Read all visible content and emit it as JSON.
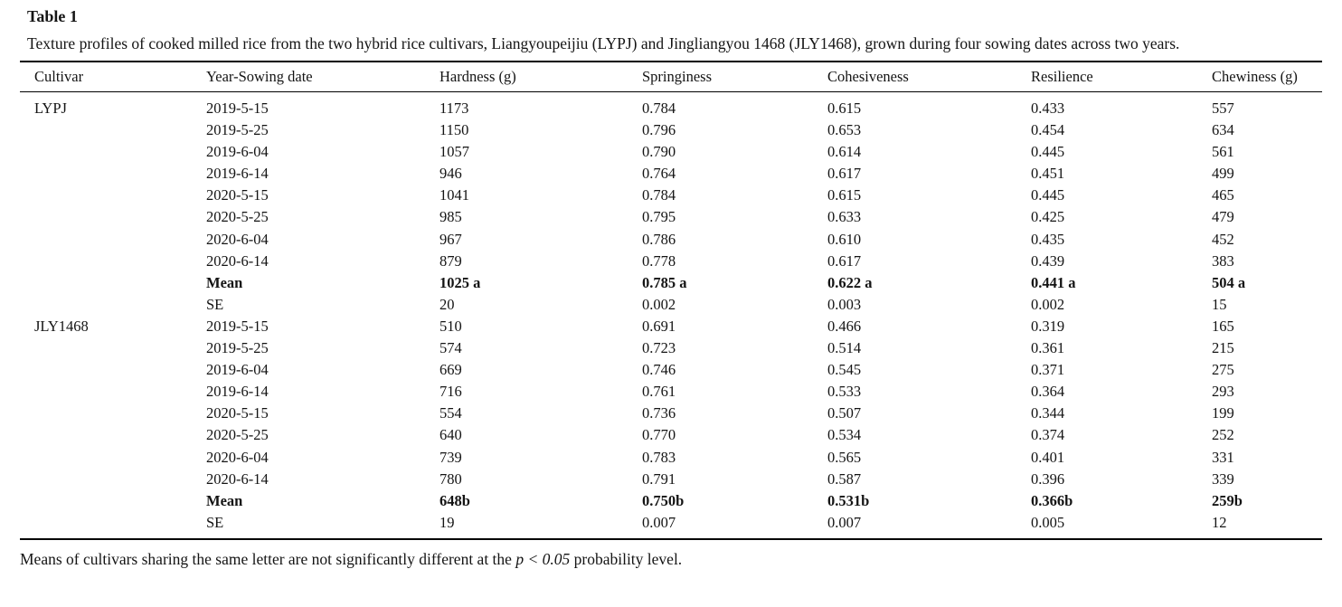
{
  "title": "Table 1",
  "caption": "Texture profiles of cooked milled rice from the two hybrid rice cultivars, Liangyoupeijiu (LYPJ) and Jingliangyou 1468 (JLY1468), grown during four sowing dates across two years.",
  "columns": [
    "Cultivar",
    "Year-Sowing date",
    "Hardness (g)",
    "Springiness",
    "Cohesiveness",
    "Resilience",
    "Chewiness (g)"
  ],
  "row_keys": [
    "cultivar",
    "date",
    "hardness",
    "springiness",
    "cohesiveness",
    "resilience",
    "chewiness"
  ],
  "rows": [
    {
      "cultivar": "LYPJ",
      "date": "2019-5-15",
      "hardness": "1173",
      "springiness": "0.784",
      "cohesiveness": "0.615",
      "resilience": "0.433",
      "chewiness": "557",
      "bold": false
    },
    {
      "cultivar": "",
      "date": "2019-5-25",
      "hardness": "1150",
      "springiness": "0.796",
      "cohesiveness": "0.653",
      "resilience": "0.454",
      "chewiness": "634",
      "bold": false
    },
    {
      "cultivar": "",
      "date": "2019-6-04",
      "hardness": "1057",
      "springiness": "0.790",
      "cohesiveness": "0.614",
      "resilience": "0.445",
      "chewiness": "561",
      "bold": false
    },
    {
      "cultivar": "",
      "date": "2019-6-14",
      "hardness": "946",
      "springiness": "0.764",
      "cohesiveness": "0.617",
      "resilience": "0.451",
      "chewiness": "499",
      "bold": false
    },
    {
      "cultivar": "",
      "date": "2020-5-15",
      "hardness": "1041",
      "springiness": "0.784",
      "cohesiveness": "0.615",
      "resilience": "0.445",
      "chewiness": "465",
      "bold": false
    },
    {
      "cultivar": "",
      "date": "2020-5-25",
      "hardness": "985",
      "springiness": "0.795",
      "cohesiveness": "0.633",
      "resilience": "0.425",
      "chewiness": "479",
      "bold": false
    },
    {
      "cultivar": "",
      "date": "2020-6-04",
      "hardness": "967",
      "springiness": "0.786",
      "cohesiveness": "0.610",
      "resilience": "0.435",
      "chewiness": "452",
      "bold": false
    },
    {
      "cultivar": "",
      "date": "2020-6-14",
      "hardness": "879",
      "springiness": "0.778",
      "cohesiveness": "0.617",
      "resilience": "0.439",
      "chewiness": "383",
      "bold": false
    },
    {
      "cultivar": "",
      "date": "Mean",
      "hardness": "1025 a",
      "springiness": "0.785 a",
      "cohesiveness": "0.622 a",
      "resilience": "0.441 a",
      "chewiness": "504 a",
      "bold": true
    },
    {
      "cultivar": "",
      "date": "SE",
      "hardness": "20",
      "springiness": "0.002",
      "cohesiveness": "0.003",
      "resilience": "0.002",
      "chewiness": "15",
      "bold": false
    },
    {
      "cultivar": "JLY1468",
      "date": "2019-5-15",
      "hardness": "510",
      "springiness": "0.691",
      "cohesiveness": "0.466",
      "resilience": "0.319",
      "chewiness": "165",
      "bold": false
    },
    {
      "cultivar": "",
      "date": "2019-5-25",
      "hardness": "574",
      "springiness": "0.723",
      "cohesiveness": "0.514",
      "resilience": "0.361",
      "chewiness": "215",
      "bold": false
    },
    {
      "cultivar": "",
      "date": "2019-6-04",
      "hardness": "669",
      "springiness": "0.746",
      "cohesiveness": "0.545",
      "resilience": "0.371",
      "chewiness": "275",
      "bold": false
    },
    {
      "cultivar": "",
      "date": "2019-6-14",
      "hardness": "716",
      "springiness": "0.761",
      "cohesiveness": "0.533",
      "resilience": "0.364",
      "chewiness": "293",
      "bold": false
    },
    {
      "cultivar": "",
      "date": "2020-5-15",
      "hardness": "554",
      "springiness": "0.736",
      "cohesiveness": "0.507",
      "resilience": "0.344",
      "chewiness": "199",
      "bold": false
    },
    {
      "cultivar": "",
      "date": "2020-5-25",
      "hardness": "640",
      "springiness": "0.770",
      "cohesiveness": "0.534",
      "resilience": "0.374",
      "chewiness": "252",
      "bold": false
    },
    {
      "cultivar": "",
      "date": "2020-6-04",
      "hardness": "739",
      "springiness": "0.783",
      "cohesiveness": "0.565",
      "resilience": "0.401",
      "chewiness": "331",
      "bold": false
    },
    {
      "cultivar": "",
      "date": "2020-6-14",
      "hardness": "780",
      "springiness": "0.791",
      "cohesiveness": "0.587",
      "resilience": "0.396",
      "chewiness": "339",
      "bold": false
    },
    {
      "cultivar": "",
      "date": "Mean",
      "hardness": "648b",
      "springiness": "0.750b",
      "cohesiveness": "0.531b",
      "resilience": "0.366b",
      "chewiness": "259b",
      "bold": true
    },
    {
      "cultivar": "",
      "date": "SE",
      "hardness": "19",
      "springiness": "0.007",
      "cohesiveness": "0.007",
      "resilience": "0.005",
      "chewiness": "12",
      "bold": false
    }
  ],
  "footnote": {
    "text_before": "Means of cultivars sharing the same letter are not significantly different at the ",
    "italic_text": "p < 0.05",
    "text_after": " probability level."
  },
  "colors": {
    "text": "#141414",
    "rule": "#000000",
    "background": "#ffffff"
  }
}
